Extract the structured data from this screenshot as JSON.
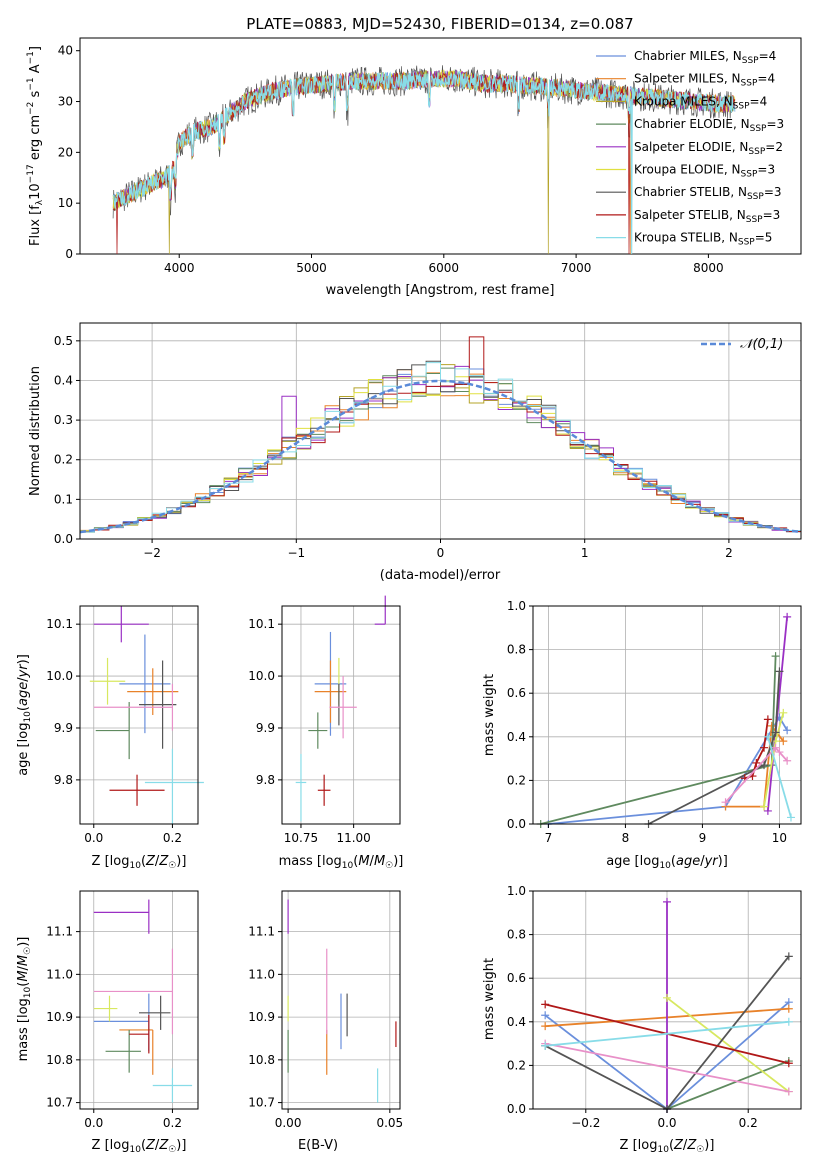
{
  "figure": {
    "title": "PLATE=0883, MJD=52430, FIBERID=0134, z=0.087",
    "model_names": [
      "Chabrier MILES",
      "Salpeter MILES",
      "Kroupa MILES",
      "Chabrier ELODIE",
      "Salpeter ELODIE",
      "Kroupa ELODIE",
      "Chabrier STELIB",
      "Salpeter STELIB",
      "Kroupa STELIB"
    ],
    "model_nssp": [
      "4",
      "4",
      "4",
      "3",
      "2",
      "3",
      "3",
      "3",
      "5"
    ],
    "model_colors": [
      "#6a8fdc",
      "#e8822a",
      "#b5a42a",
      "#5f8a5f",
      "#9a30c4",
      "#e0e040",
      "#555555",
      "#b01818",
      "#88dce8"
    ],
    "panel_colors": [
      "#6a8fdc",
      "#e8822a",
      "#5f8a5f",
      "#9a30c4",
      "#d8e860",
      "#555555",
      "#b01818",
      "#e890c8",
      "#88dce8"
    ]
  },
  "chart_data": [
    {
      "id": "spectrum",
      "type": "line",
      "xlabel": "wavelength [Angstrom, rest frame]",
      "ylabel": "Flux [f_λ10⁻¹⁷ erg cm⁻² s⁻¹ A⁻¹]",
      "xlim": [
        3250,
        8700
      ],
      "ylim": [
        0,
        42.5
      ],
      "xticks": [
        4000,
        5000,
        6000,
        7000,
        8000
      ],
      "yticks": [
        0,
        10,
        20,
        30,
        40
      ],
      "grid": false,
      "legend_position": "top-right",
      "x_range_of_data": [
        3500,
        8200
      ],
      "continuum": {
        "x": [
          3500,
          3650,
          3800,
          3900,
          3960,
          4000,
          4100,
          4250,
          4350,
          4500,
          4700,
          4900,
          5100,
          5300,
          5500,
          5700,
          5900,
          6100,
          6300,
          6500,
          6700,
          6900,
          7100,
          7300,
          7500,
          7700,
          7900,
          8100,
          8200
        ],
        "y": [
          10,
          12,
          14,
          15,
          17,
          22,
          24,
          25,
          27,
          30,
          32,
          33,
          33.5,
          34,
          34,
          34,
          34.5,
          34.5,
          33.5,
          33.5,
          33,
          32.5,
          32,
          31.5,
          31,
          30.5,
          30,
          29.5,
          29.5
        ]
      },
      "absorption_lines": [
        3934,
        3969,
        4102,
        4304,
        4341,
        4861,
        5175,
        5270,
        5892,
        6563,
        6790,
        7400
      ]
    },
    {
      "id": "residuals",
      "type": "line",
      "xlabel": "(data-model)/error",
      "ylabel": "Normed distribution",
      "xlim": [
        -2.5,
        2.5
      ],
      "ylim": [
        0,
        0.545
      ],
      "xticks": [
        -2,
        -1,
        0,
        1,
        2
      ],
      "yticks": [
        0.0,
        0.1,
        0.2,
        0.3,
        0.4,
        0.5
      ],
      "grid": true,
      "legend_position": "top-right",
      "reference_curve": {
        "name": "𝒩(0,1)",
        "mean": 0,
        "sigma": 1
      },
      "bin_width": 0.1
    },
    {
      "id": "age-vs-Z",
      "type": "scatter",
      "xlabel": "Z [log₁₀(Z/Z☉)]",
      "ylabel": "age  [log₁₀(age/yr)]",
      "xlim": [
        -0.035,
        0.265
      ],
      "ylim": [
        9.715,
        10.135
      ],
      "xticks": [
        0.0,
        0.2
      ],
      "yticks": [
        9.8,
        9.9,
        10.0,
        10.1
      ],
      "grid": true,
      "points": [
        {
          "x": 0.13,
          "y": 9.985,
          "xerr": [
            0.065,
            0.065
          ],
          "yerr": [
            0.095,
            0.095
          ]
        },
        {
          "x": 0.15,
          "y": 9.97,
          "xerr": [
            0.065,
            0.065
          ],
          "yerr": [
            0.045,
            0.045
          ]
        },
        {
          "x": 0.09,
          "y": 9.895,
          "xerr": [
            0.085,
            0.0
          ],
          "yerr": [
            0.055,
            0.055
          ]
        },
        {
          "x": 0.07,
          "y": 10.1,
          "xerr": [
            0.07,
            0.07
          ],
          "yerr": [
            0.035,
            0.035
          ]
        },
        {
          "x": 0.035,
          "y": 9.99,
          "xerr": [
            0.045,
            0.045
          ],
          "yerr": [
            0.045,
            0.045
          ]
        },
        {
          "x": 0.175,
          "y": 9.945,
          "xerr": [
            0.06,
            0.035
          ],
          "yerr": [
            0.085,
            0.085
          ]
        },
        {
          "x": 0.11,
          "y": 9.78,
          "xerr": [
            0.07,
            0.07
          ],
          "yerr": [
            0.03,
            0.03
          ]
        },
        {
          "x": 0.2,
          "y": 9.94,
          "xerr": [
            0.2,
            0.0
          ],
          "yerr": [
            0.045,
            0.045
          ]
        },
        {
          "x": 0.2,
          "y": 9.795,
          "xerr": [
            0.07,
            0.08
          ],
          "yerr": [
            0.08,
            0.065
          ]
        }
      ]
    },
    {
      "id": "age-vs-mass",
      "type": "scatter",
      "xlabel": "mass [log₁₀(M/M☉)]",
      "ylabel": "",
      "xlim": [
        10.66,
        11.22
      ],
      "ylim": [
        9.715,
        10.135
      ],
      "xticks": [
        10.75,
        11.0
      ],
      "yticks": [
        9.8,
        9.9,
        10.0,
        10.1
      ],
      "grid": true,
      "points": [
        {
          "x": 10.89,
          "y": 9.985,
          "xerr": [
            0.075,
            0.075
          ],
          "yerr": [
            0.1,
            0.1
          ]
        },
        {
          "x": 10.89,
          "y": 9.97,
          "xerr": [
            0.075,
            0.075
          ],
          "yerr": [
            0.06,
            0.06
          ]
        },
        {
          "x": 10.83,
          "y": 9.895,
          "xerr": [
            0.045,
            0.045
          ],
          "yerr": [
            0.035,
            0.035
          ]
        },
        {
          "x": 11.15,
          "y": 10.1,
          "xerr": [
            0.05,
            0.0
          ],
          "yerr": [
            0.0,
            0.055
          ]
        },
        {
          "x": 10.93,
          "y": 9.99,
          "xerr": [
            0.0,
            0.0
          ],
          "yerr": [
            0.045,
            0.045
          ]
        },
        {
          "x": 10.93,
          "y": 9.945,
          "xerr": [
            0.0,
            0.0
          ],
          "yerr": [
            0.04,
            0.04
          ]
        },
        {
          "x": 10.86,
          "y": 9.78,
          "xerr": [
            0.03,
            0.03
          ],
          "yerr": [
            0.03,
            0.03
          ]
        },
        {
          "x": 10.95,
          "y": 9.94,
          "xerr": [
            0.065,
            0.065
          ],
          "yerr": [
            0.06,
            0.06
          ]
        },
        {
          "x": 10.75,
          "y": 9.795,
          "xerr": [
            0.025,
            0.025
          ],
          "yerr": [
            0.075,
            0.055
          ]
        }
      ]
    },
    {
      "id": "weight-vs-age",
      "type": "line",
      "xlabel": "age  [log₁₀(age/yr)]",
      "ylabel": "mass weight",
      "xlim": [
        6.8,
        10.28
      ],
      "ylim": [
        0,
        1.0
      ],
      "xticks": [
        7,
        8,
        9,
        10
      ],
      "yticks": [
        0.0,
        0.2,
        0.4,
        0.6,
        0.8,
        1.0
      ],
      "grid": true,
      "series": [
        {
          "x": [
            7.0,
            9.3,
            10.0,
            10.1
          ],
          "y": [
            0.0,
            0.08,
            0.49,
            0.43
          ]
        },
        {
          "x": [
            9.3,
            9.8,
            9.9,
            10.05
          ],
          "y": [
            0.08,
            0.08,
            0.45,
            0.38
          ]
        },
        {
          "x": [
            6.9,
            9.9,
            9.95
          ],
          "y": [
            0.0,
            0.27,
            0.77
          ]
        },
        {
          "x": [
            9.85,
            10.1
          ],
          "y": [
            0.06,
            0.95
          ]
        },
        {
          "x": [
            9.8,
            9.95,
            10.05
          ],
          "y": [
            0.08,
            0.38,
            0.51
          ]
        },
        {
          "x": [
            8.3,
            9.8,
            9.95,
            10.0
          ],
          "y": [
            0.0,
            0.27,
            0.42,
            0.7
          ]
        },
        {
          "x": [
            9.55,
            9.65,
            9.7,
            9.8,
            9.85
          ],
          "y": [
            0.21,
            0.22,
            0.28,
            0.35,
            0.48
          ]
        },
        {
          "x": [
            9.3,
            9.95,
            10.0,
            10.1
          ],
          "y": [
            0.1,
            0.35,
            0.33,
            0.29
          ]
        },
        {
          "x": [
            9.85,
            10.15
          ],
          "y": [
            0.4,
            0.03
          ]
        }
      ]
    },
    {
      "id": "mass-vs-Z",
      "type": "scatter",
      "xlabel": "Z [log₁₀(Z/Z☉)]",
      "ylabel": "mass [log₁₀(M/M☉)]",
      "xlim": [
        -0.035,
        0.265
      ],
      "ylim": [
        10.685,
        11.195
      ],
      "xticks": [
        0.0,
        0.2
      ],
      "yticks": [
        10.7,
        10.8,
        10.9,
        11.0,
        11.1
      ],
      "grid": true,
      "points": [
        {
          "x": 0.14,
          "y": 10.89,
          "xerr": [
            0.14,
            0.0
          ],
          "yerr": [
            0.07,
            0.065
          ]
        },
        {
          "x": 0.15,
          "y": 10.87,
          "xerr": [
            0.085,
            0.0
          ],
          "yerr": [
            0.105,
            0.0
          ]
        },
        {
          "x": 0.09,
          "y": 10.82,
          "xerr": [
            0.06,
            0.03
          ],
          "yerr": [
            0.05,
            0.05
          ]
        },
        {
          "x": 0.14,
          "y": 11.145,
          "xerr": [
            0.14,
            0.0
          ],
          "yerr": [
            0.05,
            0.03
          ]
        },
        {
          "x": 0.04,
          "y": 10.92,
          "xerr": [
            0.04,
            0.02
          ],
          "yerr": [
            0.03,
            0.03
          ]
        },
        {
          "x": 0.17,
          "y": 10.91,
          "xerr": [
            0.055,
            0.025
          ],
          "yerr": [
            0.04,
            0.04
          ]
        },
        {
          "x": 0.14,
          "y": 10.86,
          "xerr": [
            0.05,
            0.0
          ],
          "yerr": [
            0.045,
            0.045
          ]
        },
        {
          "x": 0.2,
          "y": 10.96,
          "xerr": [
            0.2,
            0.0
          ],
          "yerr": [
            0.1,
            0.1
          ]
        },
        {
          "x": 0.2,
          "y": 10.74,
          "xerr": [
            0.05,
            0.05
          ],
          "yerr": [
            0.04,
            0.04
          ]
        }
      ]
    },
    {
      "id": "mass-vs-EBV",
      "type": "scatter",
      "xlabel": "E(B-V)",
      "ylabel": "",
      "xlim": [
        -0.003,
        0.055
      ],
      "ylim": [
        10.685,
        11.195
      ],
      "xticks": [
        0.0,
        0.05
      ],
      "yticks": [
        10.7,
        10.8,
        10.9,
        11.0,
        11.1
      ],
      "grid": true,
      "points": [
        {
          "x": 0.026,
          "y": 10.89,
          "xerr": [
            0,
            0
          ],
          "yerr": [
            0.065,
            0.065
          ]
        },
        {
          "x": 0.019,
          "y": 10.87,
          "xerr": [
            0,
            0
          ],
          "yerr": [
            0.105,
            0.0
          ]
        },
        {
          "x": 0.0,
          "y": 10.82,
          "xerr": [
            0,
            0
          ],
          "yerr": [
            0.05,
            0.05
          ]
        },
        {
          "x": 0.0,
          "y": 11.145,
          "xerr": [
            0,
            0
          ],
          "yerr": [
            0.05,
            0.03
          ]
        },
        {
          "x": 0.0,
          "y": 10.92,
          "xerr": [
            0,
            0
          ],
          "yerr": [
            0.03,
            0.03
          ]
        },
        {
          "x": 0.029,
          "y": 10.905,
          "xerr": [
            0,
            0
          ],
          "yerr": [
            0.05,
            0.05
          ]
        },
        {
          "x": 0.053,
          "y": 10.86,
          "xerr": [
            0,
            0
          ],
          "yerr": [
            0.03,
            0.03
          ]
        },
        {
          "x": 0.019,
          "y": 10.96,
          "xerr": [
            0,
            0
          ],
          "yerr": [
            0.1,
            0.1
          ]
        },
        {
          "x": 0.044,
          "y": 10.74,
          "xerr": [
            0,
            0
          ],
          "yerr": [
            0.04,
            0.04
          ]
        }
      ]
    },
    {
      "id": "weight-vs-Z",
      "type": "line",
      "xlabel": "Z [log₁₀(Z/Z☉)]",
      "ylabel": "mass weight",
      "xlim": [
        -0.33,
        0.33
      ],
      "ylim": [
        0,
        1.0
      ],
      "xticks": [
        -0.2,
        0.0,
        0.2
      ],
      "yticks": [
        0.0,
        0.2,
        0.4,
        0.6,
        0.8,
        1.0
      ],
      "grid": true,
      "series": [
        {
          "x": [
            -0.3,
            0.0,
            0.3
          ],
          "y": [
            0.43,
            0.0,
            0.49
          ]
        },
        {
          "x": [
            -0.3,
            0.3
          ],
          "y": [
            0.38,
            0.46
          ]
        },
        {
          "x": [
            0.0,
            0.3
          ],
          "y": [
            0.0,
            0.22
          ]
        },
        {
          "x": [
            0.0,
            0.0
          ],
          "y": [
            0.0,
            0.95
          ]
        },
        {
          "x": [
            0.0,
            0.3
          ],
          "y": [
            0.51,
            0.08
          ]
        },
        {
          "x": [
            -0.3,
            0.0,
            0.3
          ],
          "y": [
            0.29,
            0.0,
            0.7
          ]
        },
        {
          "x": [
            -0.3,
            0.3
          ],
          "y": [
            0.48,
            0.21
          ]
        },
        {
          "x": [
            -0.3,
            0.3
          ],
          "y": [
            0.3,
            0.08
          ]
        },
        {
          "x": [
            -0.3,
            0.3
          ],
          "y": [
            0.29,
            0.4
          ]
        }
      ]
    }
  ]
}
